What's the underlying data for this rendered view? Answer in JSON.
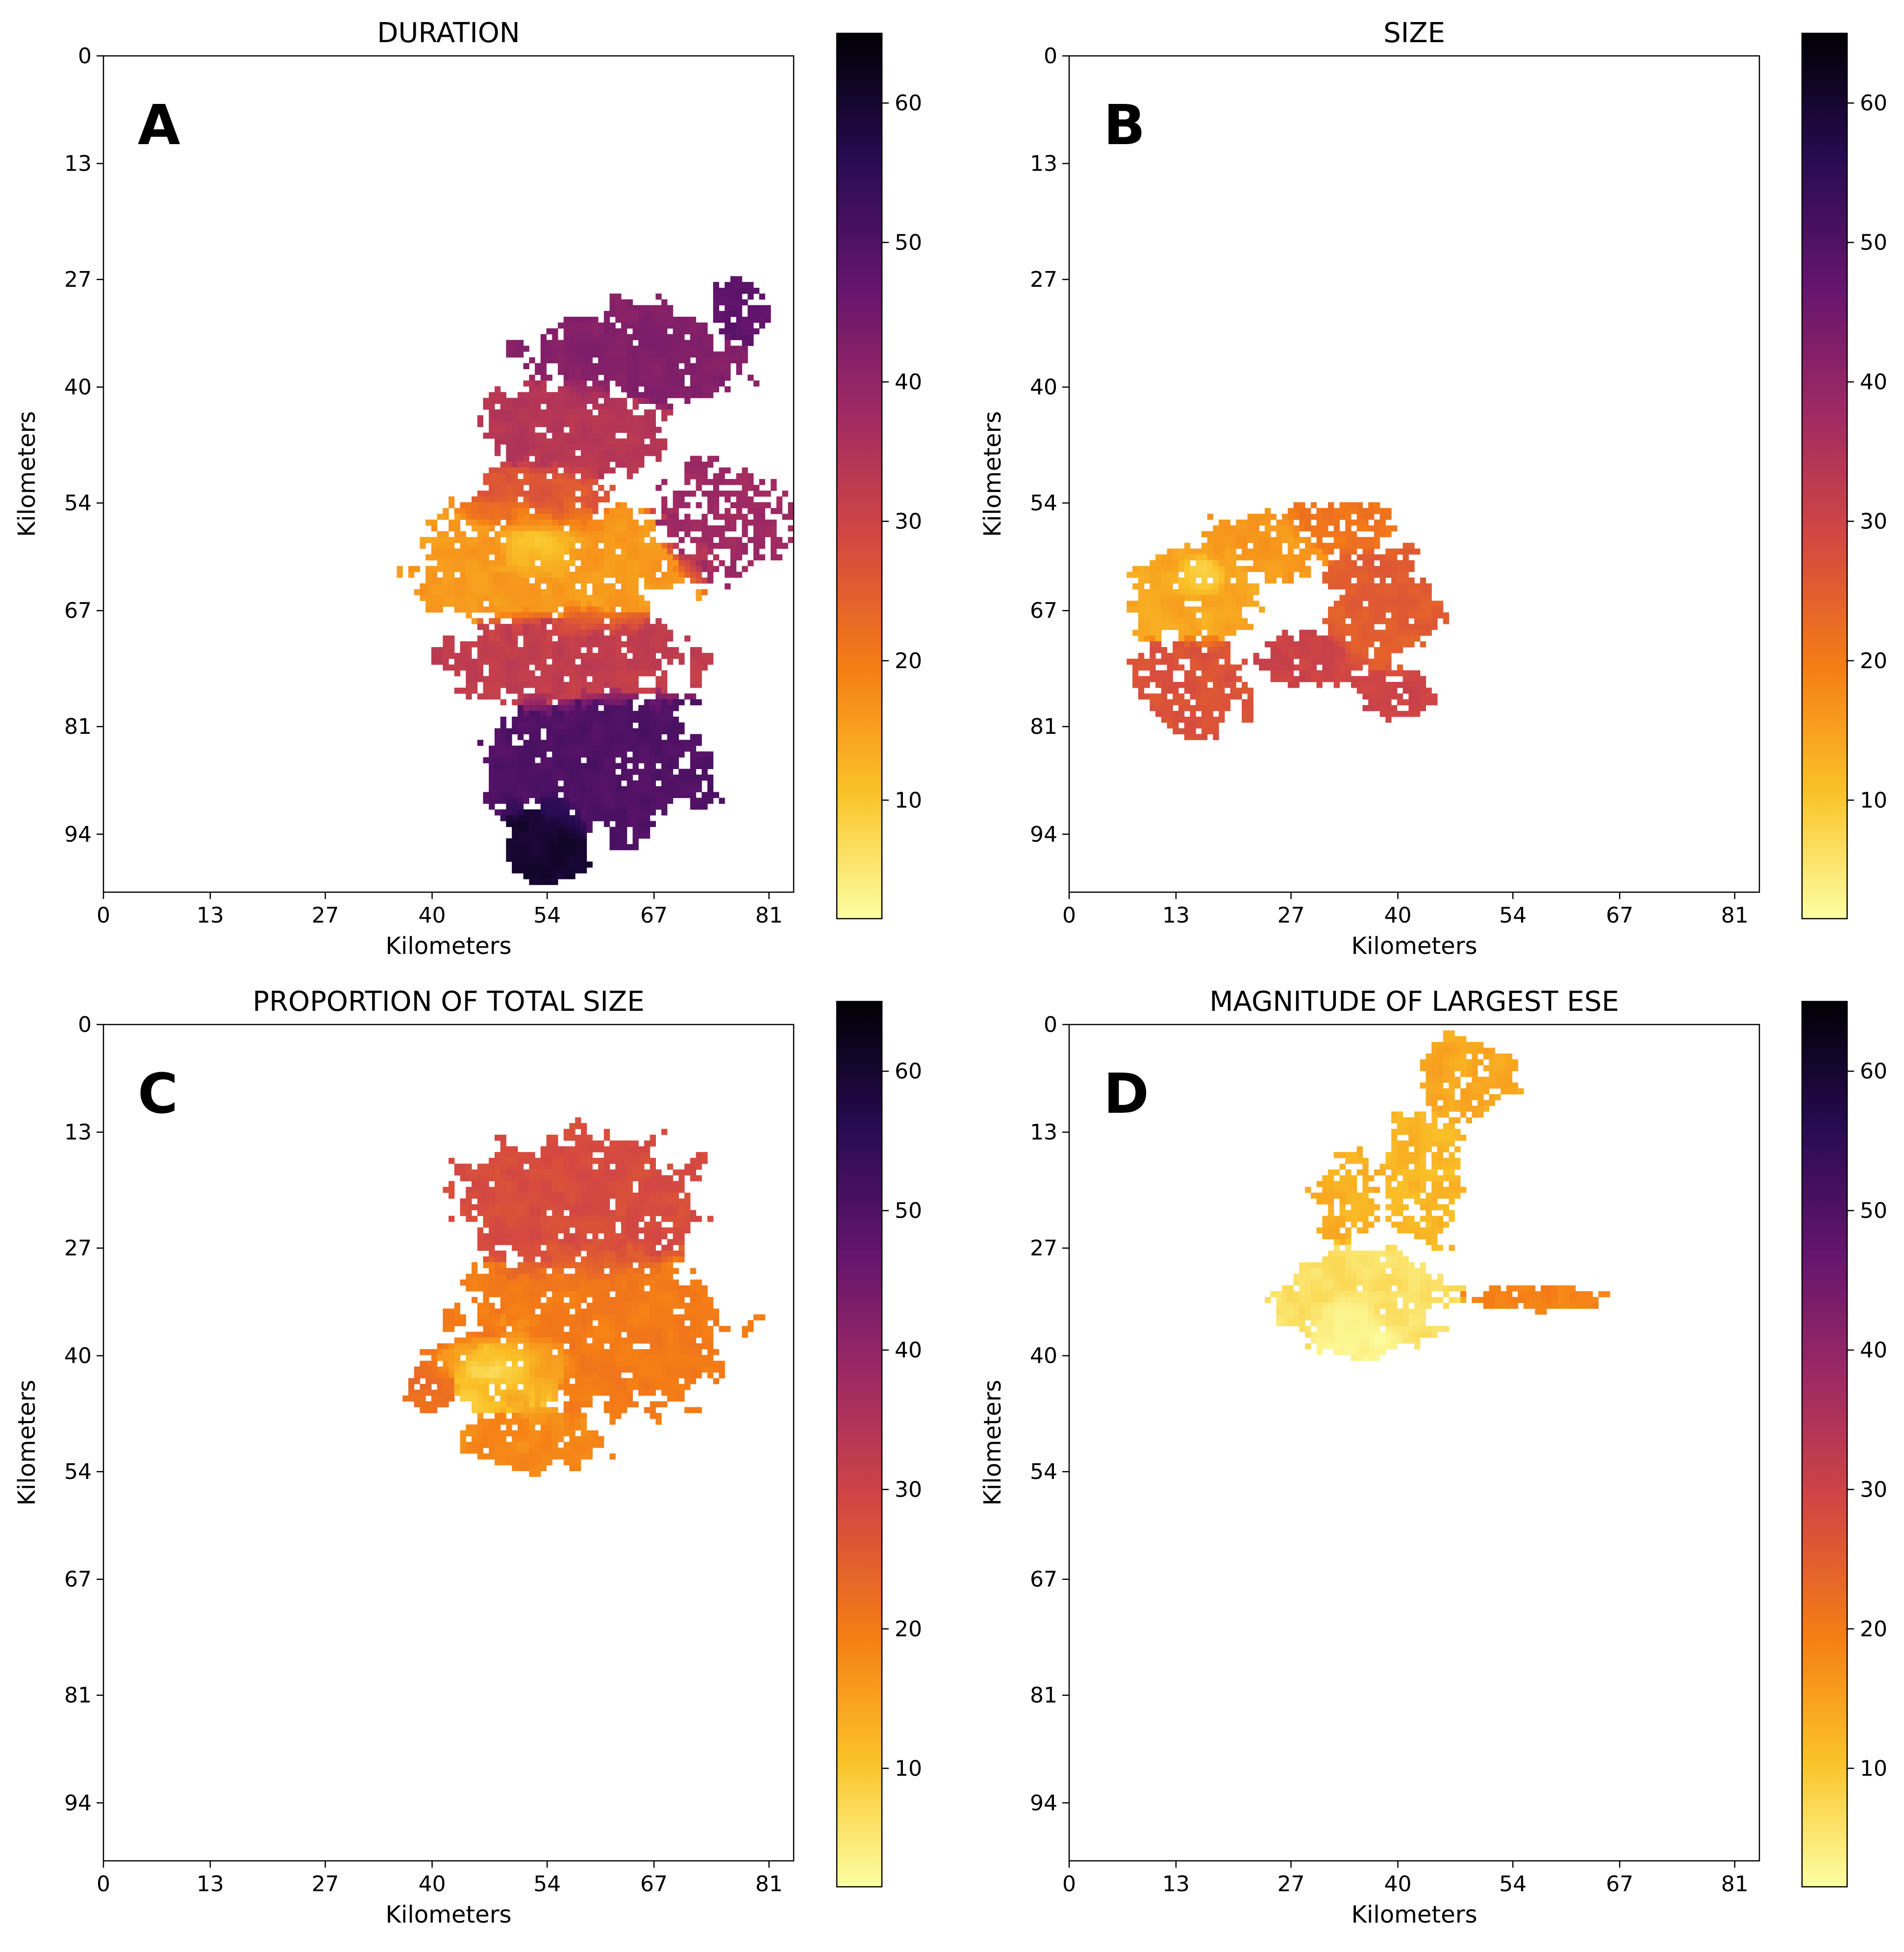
{
  "figure": {
    "background": "#ffffff",
    "colormap": "inferno_r",
    "colormap_stops": [
      "#fcffa4",
      "#fac228",
      "#f57d15",
      "#d44842",
      "#9f2a63",
      "#65156e",
      "#280b53",
      "#000004"
    ]
  },
  "chart_data": [
    {
      "type": "heatmap",
      "panel_label": "A",
      "title": "DURATION",
      "xlabel": "Kilometers",
      "ylabel": "Kilometers",
      "xticks": [
        0,
        13,
        27,
        40,
        54,
        67,
        81
      ],
      "yticks": [
        0,
        13,
        27,
        40,
        54,
        67,
        81,
        94
      ],
      "xlim": [
        0,
        84
      ],
      "ylim": [
        101,
        0
      ],
      "colorbar": {
        "range": [
          1.5,
          65
        ],
        "ticks": [
          10,
          20,
          30,
          40,
          50,
          60
        ]
      },
      "regions": [
        {
          "cx": 65,
          "cy": 36,
          "rx": 13,
          "ry": 6,
          "value": 42,
          "hole_density": 0.04
        },
        {
          "cx": 57,
          "cy": 45,
          "rx": 11,
          "ry": 6,
          "value": 34,
          "hole_density": 0.05
        },
        {
          "cx": 53,
          "cy": 54,
          "rx": 9,
          "ry": 5,
          "value": 26,
          "hole_density": 0.05
        },
        {
          "cx": 54,
          "cy": 61,
          "rx": 17,
          "ry": 8,
          "value": 16,
          "hole_density": 0.06
        },
        {
          "cx": 53,
          "cy": 59,
          "rx": 6,
          "ry": 4,
          "value": 6,
          "hole_density": 0.04
        },
        {
          "cx": 75,
          "cy": 56,
          "rx": 8,
          "ry": 7,
          "value": 38,
          "hole_density": 0.3
        },
        {
          "cx": 56,
          "cy": 73,
          "rx": 15,
          "ry": 6,
          "value": 32,
          "hole_density": 0.06
        },
        {
          "cx": 60,
          "cy": 85,
          "rx": 13,
          "ry": 9,
          "value": 50,
          "hole_density": 0.04
        },
        {
          "cx": 54,
          "cy": 95,
          "rx": 5,
          "ry": 6,
          "value": 60,
          "hole_density": 0.03
        },
        {
          "cx": 77,
          "cy": 31,
          "rx": 4,
          "ry": 4,
          "value": 48,
          "hole_density": 0.15
        }
      ]
    },
    {
      "type": "heatmap",
      "panel_label": "B",
      "title": "SIZE",
      "xlabel": "Kilometers",
      "ylabel": "Kilometers",
      "xticks": [
        0,
        13,
        27,
        40,
        54,
        67,
        81
      ],
      "yticks": [
        0,
        13,
        27,
        40,
        54,
        67,
        81,
        94
      ],
      "xlim": [
        0,
        84
      ],
      "ylim": [
        101,
        0
      ],
      "colorbar": {
        "range": [
          1.5,
          65
        ],
        "ticks": [
          10,
          20,
          30,
          40,
          50,
          60
        ]
      },
      "regions": [
        {
          "cx": 15,
          "cy": 65,
          "rx": 8,
          "ry": 6,
          "value": 14,
          "hole_density": 0.06
        },
        {
          "cx": 16,
          "cy": 63,
          "rx": 3,
          "ry": 3,
          "value": 6,
          "hole_density": 0.02
        },
        {
          "cx": 24,
          "cy": 59,
          "rx": 7,
          "ry": 4,
          "value": 16,
          "hole_density": 0.1
        },
        {
          "cx": 33,
          "cy": 57,
          "rx": 7,
          "ry": 3,
          "value": 21,
          "hole_density": 0.12
        },
        {
          "cx": 15,
          "cy": 76,
          "rx": 7,
          "ry": 6,
          "value": 27,
          "hole_density": 0.12
        },
        {
          "cx": 38,
          "cy": 67,
          "rx": 7,
          "ry": 7,
          "value": 25,
          "hole_density": 0.08
        },
        {
          "cx": 29,
          "cy": 73,
          "rx": 6,
          "ry": 3,
          "value": 30,
          "hole_density": 0.1
        },
        {
          "cx": 39,
          "cy": 77,
          "rx": 5,
          "ry": 3,
          "value": 30,
          "hole_density": 0.12
        }
      ]
    },
    {
      "type": "heatmap",
      "panel_label": "C",
      "title": "PROPORTION OF TOTAL SIZE",
      "xlabel": "Kilometers",
      "ylabel": "Kilometers",
      "xticks": [
        0,
        13,
        27,
        40,
        54,
        67,
        81
      ],
      "yticks": [
        0,
        13,
        27,
        40,
        54,
        67,
        81,
        94
      ],
      "xlim": [
        0,
        84
      ],
      "ylim": [
        101,
        0
      ],
      "colorbar": {
        "range": [
          1.5,
          65
        ],
        "ticks": [
          10,
          20,
          30,
          40,
          50,
          60
        ]
      },
      "regions": [
        {
          "cx": 58,
          "cy": 22,
          "rx": 14,
          "ry": 9,
          "value": 28,
          "hole_density": 0.05
        },
        {
          "cx": 59,
          "cy": 37,
          "rx": 17,
          "ry": 10,
          "value": 20,
          "hole_density": 0.06
        },
        {
          "cx": 50,
          "cy": 42,
          "rx": 8,
          "ry": 6,
          "value": 10,
          "hole_density": 0.04
        },
        {
          "cx": 48,
          "cy": 41,
          "rx": 4,
          "ry": 3,
          "value": 4,
          "hole_density": 0.02
        },
        {
          "cx": 52,
          "cy": 50,
          "rx": 9,
          "ry": 4,
          "value": 18,
          "hole_density": 0.06
        },
        {
          "cx": 40,
          "cy": 44,
          "rx": 3,
          "ry": 3,
          "value": 22,
          "hole_density": 0.06
        }
      ]
    },
    {
      "type": "heatmap",
      "panel_label": "D",
      "title": "MAGNITUDE OF LARGEST ESE",
      "xlabel": "Kilometers",
      "ylabel": "Kilometers",
      "xticks": [
        0,
        13,
        27,
        40,
        54,
        67,
        81
      ],
      "yticks": [
        0,
        13,
        27,
        40,
        54,
        67,
        81,
        94
      ],
      "xlim": [
        0,
        84
      ],
      "ylim": [
        101,
        0
      ],
      "colorbar": {
        "range": [
          1.5,
          65
        ],
        "ticks": [
          10,
          20,
          30,
          40,
          50,
          60
        ]
      },
      "regions": [
        {
          "cx": 48,
          "cy": 6,
          "rx": 6,
          "ry": 5,
          "value": 14,
          "hole_density": 0.15
        },
        {
          "cx": 43,
          "cy": 19,
          "rx": 5,
          "ry": 8,
          "value": 12,
          "hole_density": 0.15
        },
        {
          "cx": 34,
          "cy": 21,
          "rx": 4,
          "ry": 5,
          "value": 13,
          "hole_density": 0.2
        },
        {
          "cx": 36,
          "cy": 33,
          "rx": 10,
          "ry": 6,
          "value": 6,
          "hole_density": 0.04
        },
        {
          "cx": 35,
          "cy": 36,
          "rx": 6,
          "ry": 4,
          "value": 3,
          "hole_density": 0.03
        },
        {
          "cx": 57,
          "cy": 33,
          "rx": 8,
          "ry": 1.5,
          "value": 19,
          "hole_density": 0.1
        }
      ]
    }
  ]
}
